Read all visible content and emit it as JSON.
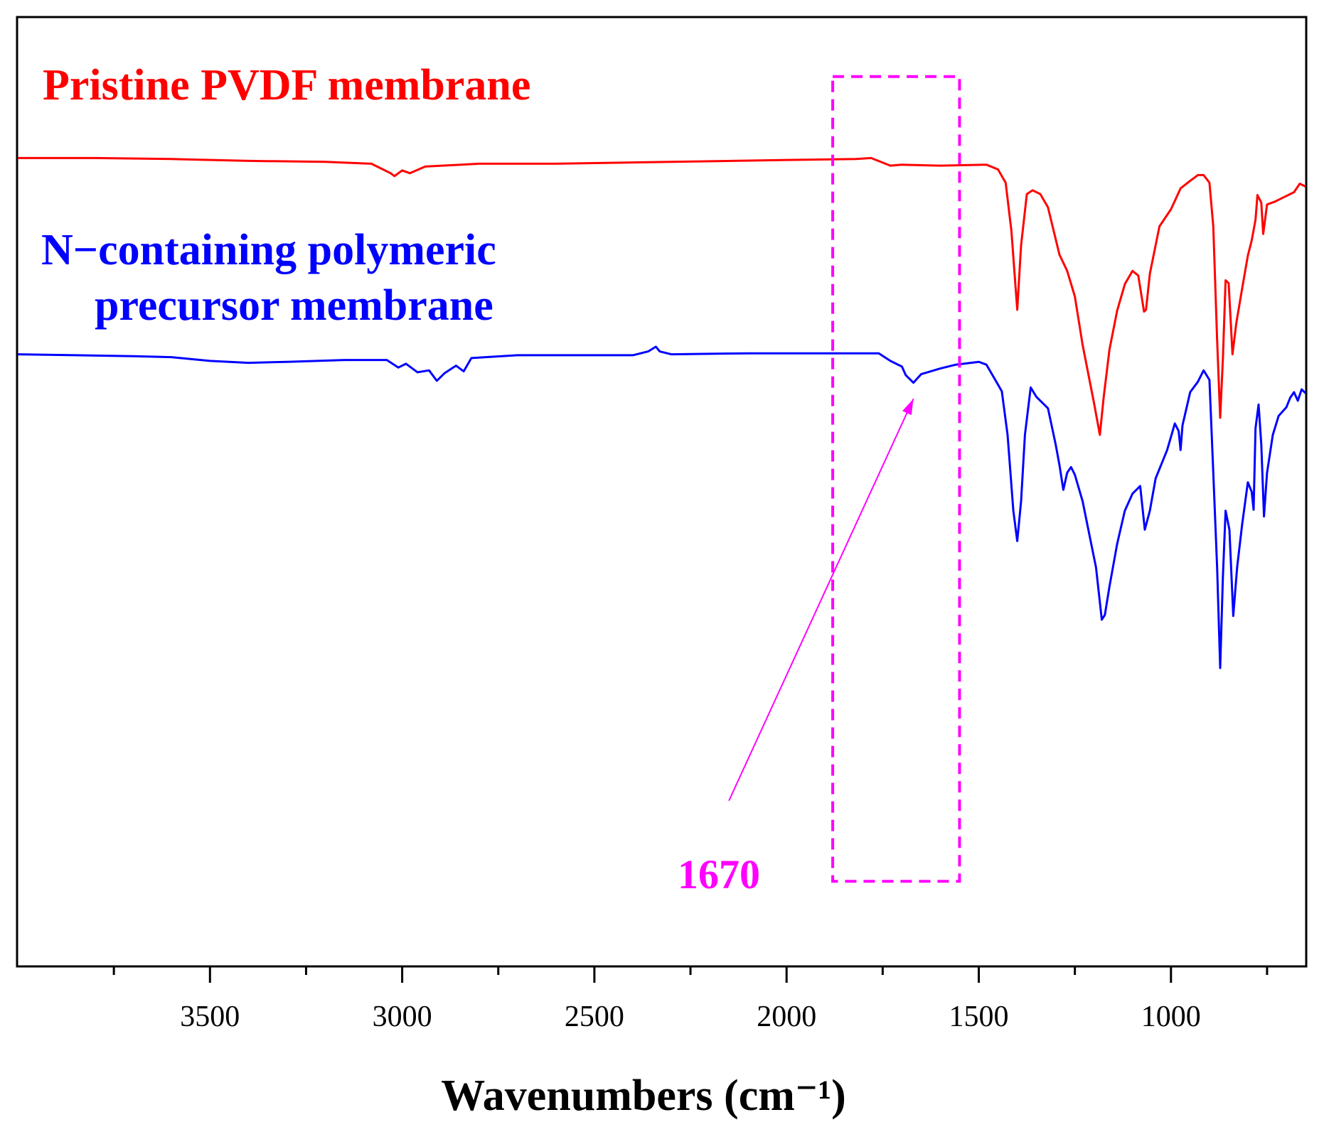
{
  "chart_data": {
    "type": "line",
    "title": "",
    "xlabel": "Wavenumbers (cm⁻¹)",
    "ylabel": "",
    "xlim": [
      4000,
      650
    ],
    "x_reversed": true,
    "x_ticks": [
      3500,
      3000,
      2500,
      2000,
      1500,
      1000
    ],
    "x_tick_labels": [
      "3500",
      "3000",
      "2500",
      "2000",
      "1500",
      "1000"
    ],
    "y_units": "transmittance (arbitrary, offset)",
    "ylim": [
      0,
      100
    ],
    "grid": false,
    "legend": "text labels at top-left",
    "series": [
      {
        "name": "Pristine PVDF membrane",
        "color": "#ff0000",
        "points": [
          [
            4000,
            85.2
          ],
          [
            3800,
            85.2
          ],
          [
            3600,
            85.1
          ],
          [
            3400,
            84.9
          ],
          [
            3200,
            84.8
          ],
          [
            3080,
            84.6
          ],
          [
            3030,
            83.6
          ],
          [
            3020,
            83.3
          ],
          [
            3000,
            83.9
          ],
          [
            2980,
            83.6
          ],
          [
            2940,
            84.3
          ],
          [
            2800,
            84.6
          ],
          [
            2600,
            84.6
          ],
          [
            2300,
            84.8
          ],
          [
            2000,
            85.0
          ],
          [
            1820,
            85.1
          ],
          [
            1780,
            85.2
          ],
          [
            1730,
            84.4
          ],
          [
            1700,
            84.5
          ],
          [
            1600,
            84.4
          ],
          [
            1480,
            84.5
          ],
          [
            1450,
            84.0
          ],
          [
            1430,
            82.6
          ],
          [
            1415,
            77.5
          ],
          [
            1400,
            69.2
          ],
          [
            1390,
            76.0
          ],
          [
            1375,
            81.4
          ],
          [
            1360,
            81.8
          ],
          [
            1340,
            81.4
          ],
          [
            1320,
            80.0
          ],
          [
            1290,
            75.0
          ],
          [
            1270,
            73.3
          ],
          [
            1250,
            70.6
          ],
          [
            1230,
            65.5
          ],
          [
            1200,
            59.3
          ],
          [
            1185,
            56.0
          ],
          [
            1175,
            60.0
          ],
          [
            1160,
            65.0
          ],
          [
            1140,
            69.1
          ],
          [
            1120,
            71.9
          ],
          [
            1100,
            73.3
          ],
          [
            1085,
            72.8
          ],
          [
            1070,
            69.0
          ],
          [
            1065,
            69.2
          ],
          [
            1055,
            73.0
          ],
          [
            1030,
            78.0
          ],
          [
            1000,
            79.8
          ],
          [
            975,
            82.0
          ],
          [
            950,
            82.8
          ],
          [
            930,
            83.4
          ],
          [
            915,
            83.4
          ],
          [
            900,
            82.6
          ],
          [
            890,
            78.0
          ],
          [
            880,
            66.0
          ],
          [
            872,
            57.8
          ],
          [
            865,
            64.0
          ],
          [
            858,
            72.3
          ],
          [
            850,
            72.0
          ],
          [
            840,
            64.5
          ],
          [
            830,
            67.8
          ],
          [
            815,
            71.4
          ],
          [
            800,
            74.9
          ],
          [
            790,
            76.5
          ],
          [
            780,
            78.7
          ],
          [
            775,
            81.3
          ],
          [
            765,
            80.5
          ],
          [
            760,
            77.2
          ],
          [
            750,
            80.3
          ],
          [
            730,
            80.6
          ],
          [
            700,
            81.2
          ],
          [
            680,
            81.6
          ],
          [
            665,
            82.5
          ],
          [
            650,
            82.2
          ]
        ]
      },
      {
        "name": "N−containing polymeric precursor membrane",
        "color": "#0000ff",
        "points": [
          [
            4000,
            64.5
          ],
          [
            3850,
            64.4
          ],
          [
            3700,
            64.3
          ],
          [
            3600,
            64.2
          ],
          [
            3500,
            63.8
          ],
          [
            3400,
            63.6
          ],
          [
            3300,
            63.7
          ],
          [
            3150,
            63.9
          ],
          [
            3040,
            63.9
          ],
          [
            3010,
            63.1
          ],
          [
            2990,
            63.5
          ],
          [
            2960,
            62.6
          ],
          [
            2930,
            62.8
          ],
          [
            2910,
            61.7
          ],
          [
            2890,
            62.5
          ],
          [
            2860,
            63.3
          ],
          [
            2840,
            62.7
          ],
          [
            2820,
            64.1
          ],
          [
            2700,
            64.4
          ],
          [
            2400,
            64.4
          ],
          [
            2360,
            64.8
          ],
          [
            2340,
            65.3
          ],
          [
            2330,
            64.8
          ],
          [
            2300,
            64.5
          ],
          [
            2100,
            64.6
          ],
          [
            1900,
            64.6
          ],
          [
            1760,
            64.6
          ],
          [
            1730,
            63.8
          ],
          [
            1700,
            63.2
          ],
          [
            1690,
            62.3
          ],
          [
            1670,
            61.5
          ],
          [
            1650,
            62.4
          ],
          [
            1600,
            63.0
          ],
          [
            1560,
            63.4
          ],
          [
            1500,
            63.7
          ],
          [
            1480,
            63.4
          ],
          [
            1460,
            62.0
          ],
          [
            1440,
            60.6
          ],
          [
            1425,
            56.0
          ],
          [
            1410,
            48.0
          ],
          [
            1400,
            44.8
          ],
          [
            1390,
            49.0
          ],
          [
            1380,
            56.0
          ],
          [
            1365,
            61.0
          ],
          [
            1350,
            60.0
          ],
          [
            1320,
            58.8
          ],
          [
            1300,
            55.0
          ],
          [
            1290,
            52.8
          ],
          [
            1280,
            50.2
          ],
          [
            1270,
            52.0
          ],
          [
            1260,
            52.6
          ],
          [
            1250,
            51.8
          ],
          [
            1230,
            49.0
          ],
          [
            1210,
            45.0
          ],
          [
            1195,
            42.0
          ],
          [
            1180,
            36.5
          ],
          [
            1172,
            37.0
          ],
          [
            1160,
            40.0
          ],
          [
            1140,
            44.5
          ],
          [
            1120,
            48.0
          ],
          [
            1100,
            49.8
          ],
          [
            1080,
            50.6
          ],
          [
            1068,
            46.0
          ],
          [
            1055,
            48.0
          ],
          [
            1040,
            51.4
          ],
          [
            1010,
            54.4
          ],
          [
            990,
            57.2
          ],
          [
            980,
            56.4
          ],
          [
            975,
            54.4
          ],
          [
            970,
            57.0
          ],
          [
            950,
            60.5
          ],
          [
            930,
            61.6
          ],
          [
            915,
            62.8
          ],
          [
            900,
            61.8
          ],
          [
            890,
            52.0
          ],
          [
            880,
            42.0
          ],
          [
            872,
            31.4
          ],
          [
            865,
            41.0
          ],
          [
            858,
            48.0
          ],
          [
            848,
            46.0
          ],
          [
            838,
            36.9
          ],
          [
            828,
            42.0
          ],
          [
            815,
            46.5
          ],
          [
            800,
            51.0
          ],
          [
            790,
            50.0
          ],
          [
            785,
            48.1
          ],
          [
            780,
            56.7
          ],
          [
            772,
            59.2
          ],
          [
            765,
            55.0
          ],
          [
            758,
            47.4
          ],
          [
            750,
            52.0
          ],
          [
            735,
            56.0
          ],
          [
            720,
            58.0
          ],
          [
            700,
            58.9
          ],
          [
            690,
            59.9
          ],
          [
            680,
            60.5
          ],
          [
            670,
            59.6
          ],
          [
            660,
            60.8
          ],
          [
            650,
            60.4
          ]
        ]
      }
    ],
    "annotations": {
      "peak_label": "1670",
      "peak_wavenumber": 1670,
      "highlight_box": {
        "x_range": [
          1880,
          1550
        ],
        "y_range": [
          8.9,
          93.8
        ]
      },
      "arrow": {
        "from": [
          2150,
          17.4
        ],
        "to": [
          1670,
          59.8
        ]
      }
    },
    "label_pristine": "Pristine PVDF membrane",
    "label_precursor_line1": "N−containing polymeric",
    "label_precursor_line2": "precursor membrane"
  },
  "colors": {
    "pristine": "#ff0000",
    "precursor": "#0000ff",
    "highlight": "#ff00ff",
    "axis": "#000000"
  }
}
